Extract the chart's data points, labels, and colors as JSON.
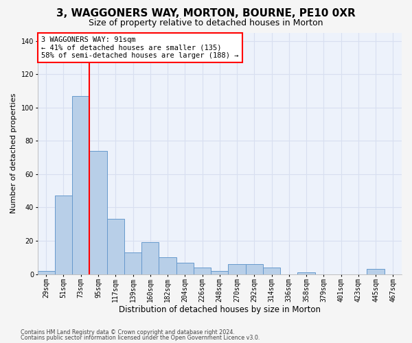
{
  "title": "3, WAGGONERS WAY, MORTON, BOURNE, PE10 0XR",
  "subtitle": "Size of property relative to detached houses in Morton",
  "xlabel": "Distribution of detached houses by size in Morton",
  "ylabel": "Number of detached properties",
  "footer1": "Contains HM Land Registry data © Crown copyright and database right 2024.",
  "footer2": "Contains public sector information licensed under the Open Government Licence v3.0.",
  "bar_labels": [
    "29sqm",
    "51sqm",
    "73sqm",
    "95sqm",
    "117sqm",
    "139sqm",
    "160sqm",
    "182sqm",
    "204sqm",
    "226sqm",
    "248sqm",
    "270sqm",
    "292sqm",
    "314sqm",
    "336sqm",
    "358sqm",
    "379sqm",
    "401sqm",
    "423sqm",
    "445sqm",
    "467sqm"
  ],
  "bar_values": [
    2,
    47,
    107,
    74,
    33,
    13,
    19,
    10,
    7,
    4,
    2,
    6,
    6,
    4,
    0,
    1,
    0,
    0,
    0,
    3,
    0
  ],
  "bar_color": "#b8cfe8",
  "bar_edgecolor": "#6699cc",
  "vline_index": 2,
  "vline_color": "red",
  "annotation_text": "3 WAGGONERS WAY: 91sqm\n← 41% of detached houses are smaller (135)\n58% of semi-detached houses are larger (188) →",
  "ylim": [
    0,
    145
  ],
  "yticks": [
    0,
    20,
    40,
    60,
    80,
    100,
    120,
    140
  ],
  "bg_color": "#edf2fb",
  "grid_color": "#d8dff0",
  "title_fontsize": 11,
  "subtitle_fontsize": 9,
  "tick_fontsize": 7,
  "ylabel_fontsize": 8,
  "xlabel_fontsize": 8.5,
  "ann_fontsize": 7.5,
  "footer_fontsize": 5.8
}
